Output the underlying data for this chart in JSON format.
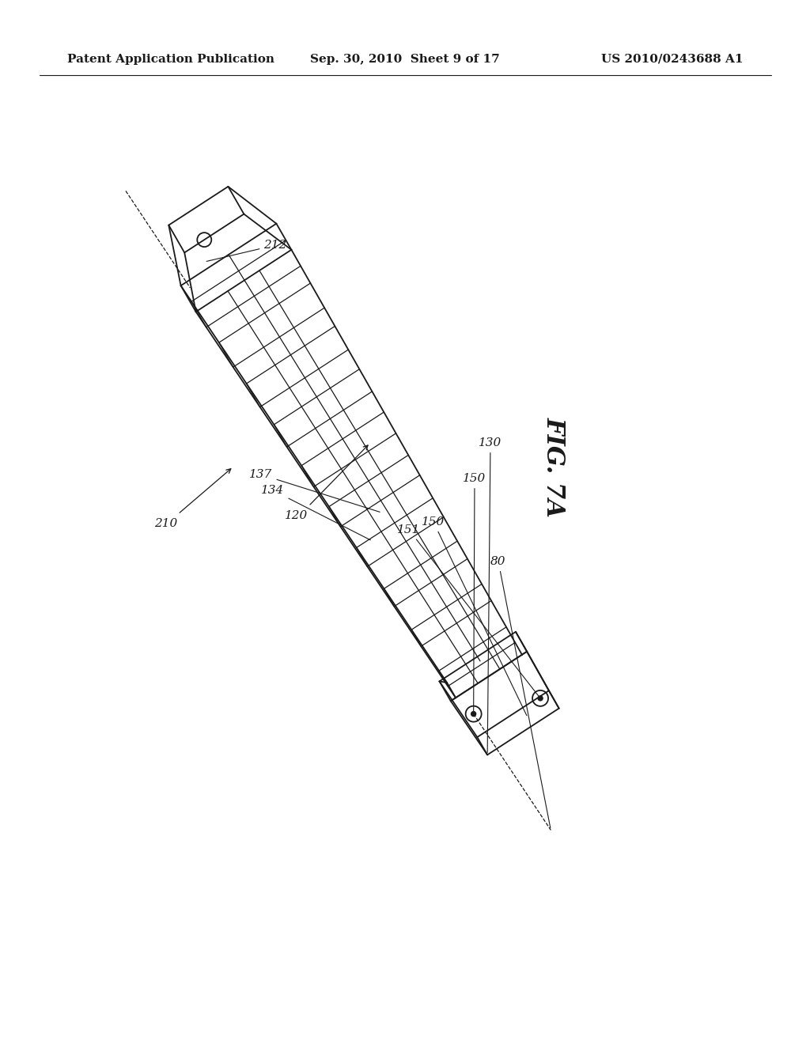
{
  "background_color": "#ffffff",
  "header_left": "Patent Application Publication",
  "header_center": "Sep. 30, 2010  Sheet 9 of 17",
  "header_right": "US 2010/0243688 A1",
  "header_fontsize": 11,
  "fig_label": "FIG. 7A",
  "fig_label_fontsize": 22,
  "line_color": "#1a1a1a",
  "annotation_fontsize": 11
}
